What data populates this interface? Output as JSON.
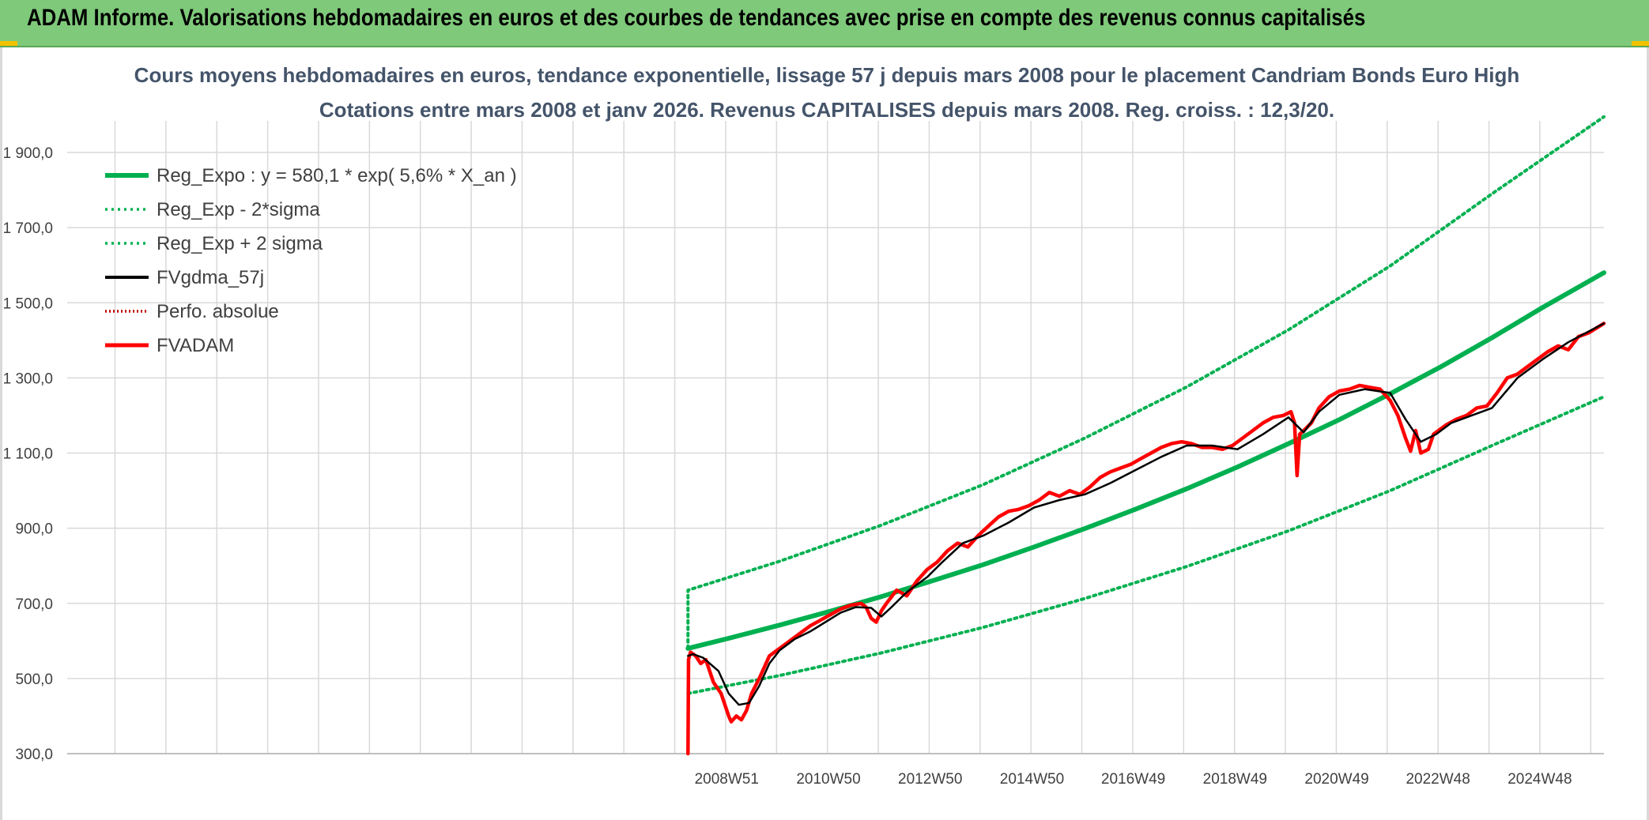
{
  "header": {
    "title": "ADAM Informe. Valorisations hebdomadaires en euros et des courbes de tendances avec prise en compte des revenus connus capitalisés"
  },
  "colors": {
    "header_bg": "#7fc97a",
    "trend": "#00b050",
    "smooth": "#000000",
    "price": "#ff0000",
    "grid": "#d9d9d9",
    "title_text": "#44546a"
  },
  "chart_data": {
    "type": "line",
    "title": "Cours moyens hebdomadaires en euros, tendance exponentielle, lissage 57 j depuis mars 2008 pour le placement Candriam Bonds Euro High",
    "subtitle": "Cotations entre mars 2008 et janv 2026. Revenus CAPITALISES depuis mars 2008. Reg. croiss. : 12,3/20.",
    "xlabel": "",
    "ylabel": "",
    "ylim": [
      300,
      1900
    ],
    "xlim": [
      1996.0,
      2026.2
    ],
    "y_ticks": [
      "300,0",
      "500,0",
      "700,0",
      "900,0",
      "1 100,0",
      "1 300,0",
      "1 500,0",
      "1 700,0",
      "1 900,0"
    ],
    "y_tick_values": [
      300,
      500,
      700,
      900,
      1100,
      1300,
      1500,
      1700,
      1900
    ],
    "x_ticks": [
      "2008W51",
      "2010W50",
      "2012W50",
      "2014W50",
      "2016W49",
      "2018W49",
      "2020W49",
      "2022W48",
      "2024W48"
    ],
    "x_tick_values": [
      2008.96,
      2010.96,
      2012.96,
      2014.96,
      2016.95,
      2018.95,
      2020.95,
      2022.94,
      2024.94
    ],
    "grid": true,
    "legend_position": "top-left",
    "series": [
      {
        "name": "Reg_Expo : y = 580,1 * exp( 5,6% *  X_an )",
        "style": "solid-thick",
        "color": "#00b050",
        "x": [
          2008.2,
          2009,
          2010,
          2011,
          2012,
          2013,
          2014,
          2015,
          2016,
          2017,
          2018,
          2019,
          2020,
          2021,
          2022,
          2023,
          2024,
          2025,
          2026.2
        ],
        "y": [
          580,
          607,
          642,
          679,
          718,
          760,
          803,
          850,
          899,
          951,
          1005,
          1063,
          1125,
          1189,
          1258,
          1330,
          1407,
          1488,
          1580
        ]
      },
      {
        "name": "Reg_Exp - 2*sigma",
        "style": "dotted",
        "color": "#00b050",
        "x": [
          2008.2,
          2010,
          2012,
          2014,
          2016,
          2018,
          2020,
          2022,
          2024,
          2026.2
        ],
        "y": [
          460,
          508,
          568,
          636,
          713,
          798,
          893,
          1000,
          1120,
          1250
        ]
      },
      {
        "name": "Reg_Exp + 2 sigma",
        "style": "dotted",
        "color": "#00b050",
        "x": [
          2008.2,
          2008.2,
          2010,
          2012,
          2014,
          2016,
          2018,
          2020,
          2022,
          2024,
          2026.2
        ],
        "y": [
          580,
          735,
          812,
          908,
          1016,
          1140,
          1276,
          1428,
          1598,
          1790,
          1995
        ]
      },
      {
        "name": "FVgdma_57j",
        "style": "solid",
        "color": "#000000",
        "x": [
          2008.2,
          2008.3,
          2008.5,
          2008.8,
          2009.0,
          2009.2,
          2009.4,
          2009.6,
          2009.8,
          2010.0,
          2010.3,
          2010.6,
          2010.9,
          2011.2,
          2011.5,
          2011.8,
          2012.0,
          2012.2,
          2012.5,
          2012.9,
          2013.2,
          2013.6,
          2014.0,
          2014.5,
          2015.0,
          2015.5,
          2016.0,
          2016.5,
          2017.0,
          2017.5,
          2018.0,
          2018.5,
          2019.0,
          2019.5,
          2020.0,
          2020.3,
          2020.6,
          2021.0,
          2021.5,
          2022.0,
          2022.3,
          2022.6,
          2022.9,
          2023.2,
          2023.6,
          2024.0,
          2024.5,
          2025.0,
          2025.5,
          2026.2
        ],
        "y": [
          560,
          565,
          555,
          520,
          460,
          430,
          435,
          480,
          540,
          575,
          605,
          625,
          650,
          675,
          690,
          688,
          665,
          690,
          730,
          770,
          810,
          860,
          880,
          915,
          955,
          975,
          990,
          1020,
          1055,
          1090,
          1120,
          1120,
          1110,
          1150,
          1195,
          1155,
          1210,
          1255,
          1270,
          1260,
          1190,
          1130,
          1150,
          1180,
          1200,
          1220,
          1300,
          1350,
          1395,
          1445
        ]
      },
      {
        "name": "Perfo. absolue",
        "style": "dotted",
        "color": "#c00000",
        "x": [],
        "y": []
      },
      {
        "name": "FVADAM",
        "style": "solid-thick",
        "color": "#ff0000",
        "x": [
          2008.2,
          2008.21,
          2008.25,
          2008.35,
          2008.45,
          2008.55,
          2008.7,
          2008.85,
          2009.0,
          2009.05,
          2009.15,
          2009.25,
          2009.35,
          2009.45,
          2009.6,
          2009.8,
          2010.0,
          2010.2,
          2010.4,
          2010.6,
          2010.8,
          2011.0,
          2011.2,
          2011.4,
          2011.6,
          2011.7,
          2011.8,
          2011.9,
          2012.0,
          2012.1,
          2012.3,
          2012.5,
          2012.7,
          2012.9,
          2013.1,
          2013.3,
          2013.5,
          2013.7,
          2013.9,
          2014.1,
          2014.3,
          2014.5,
          2014.7,
          2014.9,
          2015.1,
          2015.3,
          2015.5,
          2015.7,
          2015.9,
          2016.1,
          2016.3,
          2016.5,
          2016.7,
          2016.9,
          2017.1,
          2017.3,
          2017.5,
          2017.7,
          2017.9,
          2018.1,
          2018.3,
          2018.5,
          2018.7,
          2018.9,
          2019.1,
          2019.3,
          2019.5,
          2019.7,
          2019.9,
          2020.05,
          2020.12,
          2020.17,
          2020.22,
          2020.3,
          2020.45,
          2020.6,
          2020.8,
          2021.0,
          2021.2,
          2021.4,
          2021.6,
          2021.8,
          2022.0,
          2022.15,
          2022.3,
          2022.4,
          2022.5,
          2022.6,
          2022.75,
          2022.85,
          2022.95,
          2023.1,
          2023.3,
          2023.5,
          2023.7,
          2023.9,
          2024.1,
          2024.3,
          2024.5,
          2024.7,
          2024.9,
          2025.1,
          2025.3,
          2025.5,
          2025.7,
          2025.9,
          2026.2
        ],
        "y": [
          300,
          550,
          570,
          560,
          540,
          550,
          490,
          460,
          400,
          385,
          400,
          390,
          415,
          460,
          500,
          560,
          580,
          600,
          620,
          640,
          655,
          670,
          685,
          695,
          700,
          690,
          660,
          650,
          680,
          700,
          735,
          720,
          760,
          790,
          810,
          840,
          860,
          850,
          880,
          905,
          930,
          945,
          950,
          960,
          975,
          995,
          985,
          1000,
          990,
          1010,
          1035,
          1050,
          1060,
          1070,
          1085,
          1100,
          1115,
          1125,
          1130,
          1125,
          1115,
          1115,
          1110,
          1120,
          1140,
          1160,
          1180,
          1195,
          1200,
          1210,
          1180,
          1040,
          1150,
          1160,
          1180,
          1220,
          1250,
          1265,
          1270,
          1280,
          1275,
          1270,
          1240,
          1200,
          1140,
          1105,
          1160,
          1100,
          1110,
          1150,
          1160,
          1175,
          1190,
          1200,
          1220,
          1225,
          1260,
          1300,
          1310,
          1330,
          1350,
          1370,
          1385,
          1375,
          1410,
          1420,
          1445
        ]
      }
    ]
  }
}
